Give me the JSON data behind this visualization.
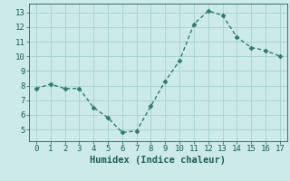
{
  "x": [
    0,
    1,
    2,
    3,
    4,
    5,
    6,
    7,
    8,
    9,
    10,
    11,
    12,
    13,
    14,
    15,
    16,
    17
  ],
  "y": [
    7.8,
    8.1,
    7.8,
    7.8,
    6.5,
    5.8,
    4.8,
    4.9,
    6.6,
    8.3,
    9.7,
    12.2,
    13.1,
    12.8,
    11.3,
    10.6,
    10.4,
    10.0
  ],
  "line_color": "#2a7d6e",
  "marker": "D",
  "marker_size": 2.5,
  "line_width": 1.0,
  "xlabel": "Humidex (Indice chaleur)",
  "xlabel_fontsize": 7.5,
  "bg_color": "#cceae8",
  "grid_color": "#aad4d0",
  "tick_color": "#1a5f5a",
  "xlim": [
    -0.5,
    17.5
  ],
  "ylim": [
    4.2,
    13.6
  ],
  "yticks": [
    5,
    6,
    7,
    8,
    9,
    10,
    11,
    12,
    13
  ],
  "xticks": [
    0,
    1,
    2,
    3,
    4,
    5,
    6,
    7,
    8,
    9,
    10,
    11,
    12,
    13,
    14,
    15,
    16,
    17
  ],
  "tick_fontsize": 6.5
}
